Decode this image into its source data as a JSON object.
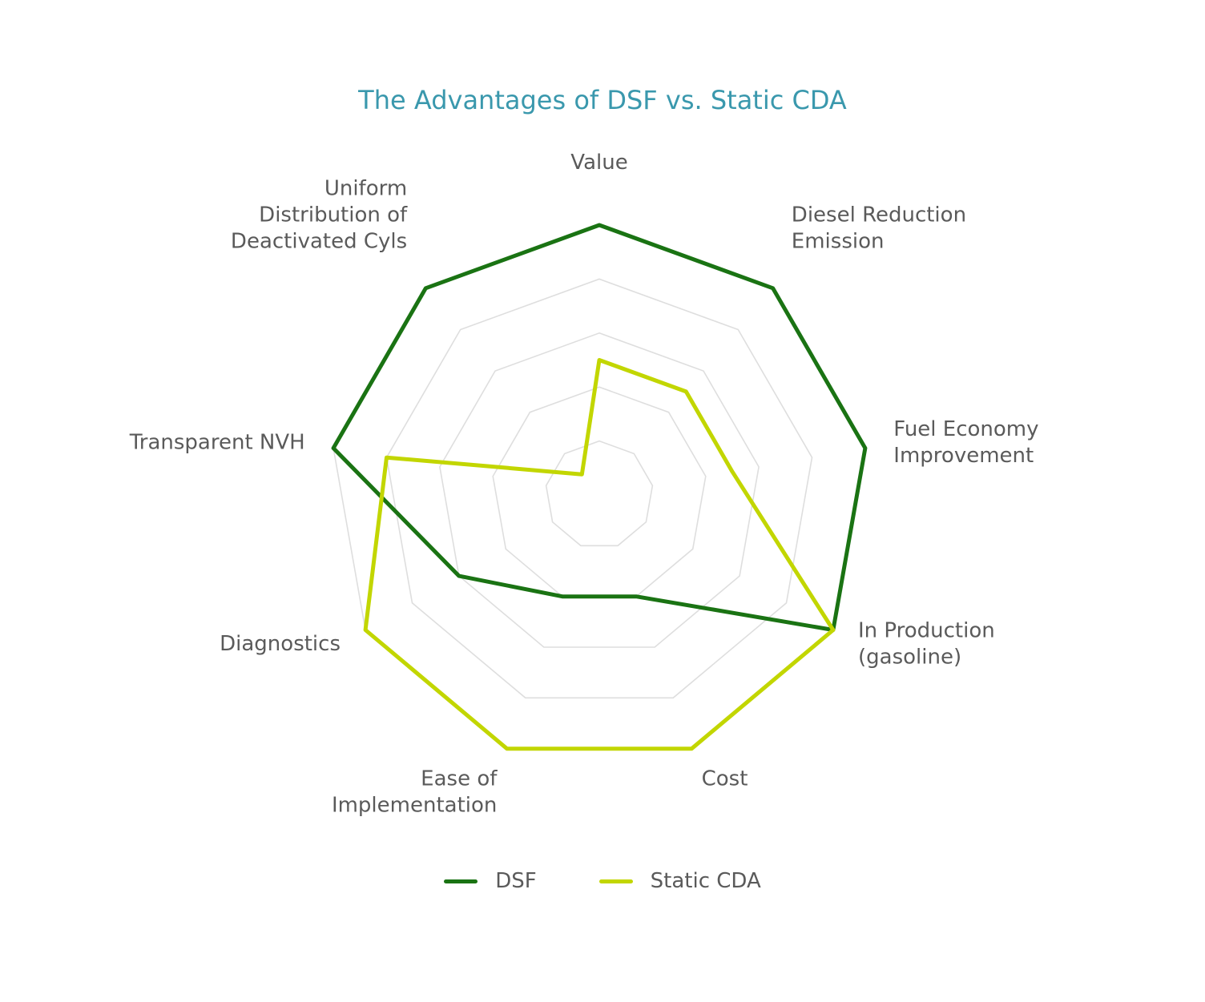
{
  "chart_data": {
    "type": "radar",
    "title": "The Advantages of DSF vs. Static CDA",
    "axes": [
      {
        "lines": [
          "Value"
        ]
      },
      {
        "lines": [
          "Diesel Reduction",
          "Emission"
        ]
      },
      {
        "lines": [
          "Fuel Economy",
          "Improvement"
        ]
      },
      {
        "lines": [
          "In Production",
          "(gasoline)"
        ]
      },
      {
        "lines": [
          "Cost"
        ]
      },
      {
        "lines": [
          "Ease of",
          "Implementation"
        ]
      },
      {
        "lines": [
          "Diagnostics"
        ]
      },
      {
        "lines": [
          "Transparent NVH"
        ]
      },
      {
        "lines": [
          "Uniform",
          "Distribution of",
          "Deactivated Cyls"
        ]
      }
    ],
    "rlim": [
      0,
      5
    ],
    "grid_levels": 5,
    "legend_position": "bottom",
    "series": [
      {
        "name": "DSF",
        "color": "#1a7313",
        "values": [
          5,
          5,
          5,
          5,
          2,
          2,
          3,
          5,
          5
        ]
      },
      {
        "name": "Static CDA",
        "color": "#c2d600",
        "values": [
          2.5,
          2.5,
          2.5,
          5,
          5,
          5,
          5,
          4,
          0.5
        ]
      }
    ]
  }
}
